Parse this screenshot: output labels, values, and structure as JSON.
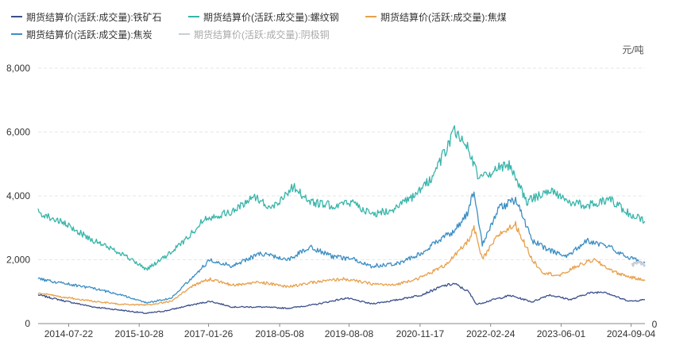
{
  "chart_data": {
    "type": "line",
    "title": "",
    "unit_label": "元/吨",
    "right_axis_label": "0",
    "ylim": [
      0,
      8000
    ],
    "y_ticks": [
      0,
      2000,
      4000,
      6000,
      8000
    ],
    "y_tick_labels": [
      "0",
      "2,000",
      "4,000",
      "6,000",
      "8,000"
    ],
    "x_tick_labels": [
      "2014-07-22",
      "2015-10-28",
      "2017-01-26",
      "2018-05-08",
      "2019-08-08",
      "2020-11-17",
      "2022-02-24",
      "2023-06-01",
      "2024-09-04"
    ],
    "x_tick_years": [
      2014.55,
      2015.82,
      2017.07,
      2018.35,
      2019.6,
      2020.88,
      2022.15,
      2023.42,
      2024.68
    ],
    "x_range": [
      2014.0,
      2024.93
    ],
    "grid": true,
    "series": [
      {
        "name": "期货结算价(活跃:成交量):铁矿石",
        "color": "#3a4f8c",
        "x": [
          2014.0,
          2014.5,
          2015.0,
          2015.5,
          2015.95,
          2016.3,
          2016.7,
          2017.1,
          2017.5,
          2018.0,
          2018.5,
          2019.0,
          2019.55,
          2020.0,
          2020.4,
          2020.9,
          2021.3,
          2021.5,
          2021.75,
          2021.9,
          2022.2,
          2022.5,
          2022.9,
          2023.2,
          2023.6,
          2023.9,
          2024.2,
          2024.5,
          2024.68,
          2024.93
        ],
        "values": [
          900,
          700,
          520,
          420,
          320,
          400,
          560,
          700,
          520,
          520,
          480,
          600,
          800,
          620,
          720,
          900,
          1180,
          1250,
          1000,
          600,
          750,
          880,
          680,
          900,
          750,
          950,
          1000,
          780,
          700,
          750
        ]
      },
      {
        "name": "期货结算价(活跃:成交量):螺纹钢",
        "color": "#37b5aa",
        "x": [
          2014.0,
          2014.5,
          2015.0,
          2015.5,
          2015.95,
          2016.3,
          2016.7,
          2017.0,
          2017.5,
          2017.9,
          2018.2,
          2018.6,
          2018.9,
          2019.3,
          2019.7,
          2020.0,
          2020.4,
          2020.8,
          2021.1,
          2021.3,
          2021.5,
          2021.7,
          2021.95,
          2022.2,
          2022.5,
          2022.8,
          2023.2,
          2023.6,
          2023.9,
          2024.3,
          2024.6,
          2024.93
        ],
        "values": [
          3500,
          3100,
          2600,
          2200,
          1700,
          2100,
          2700,
          3300,
          3500,
          4000,
          3600,
          4300,
          3800,
          3700,
          3800,
          3400,
          3600,
          4000,
          4600,
          5300,
          6000,
          5700,
          4500,
          4800,
          5000,
          3800,
          4200,
          3800,
          3700,
          3900,
          3500,
          3200
        ]
      },
      {
        "name": "期货结算价(活跃:成交量):焦煤",
        "color": "#e8a04c",
        "x": [
          2014.0,
          2014.5,
          2015.0,
          2015.5,
          2015.95,
          2016.4,
          2016.8,
          2017.1,
          2017.5,
          2018.0,
          2018.5,
          2019.0,
          2019.5,
          2020.0,
          2020.4,
          2020.9,
          2021.3,
          2021.55,
          2021.75,
          2021.85,
          2022.0,
          2022.3,
          2022.6,
          2022.9,
          2023.1,
          2023.4,
          2023.7,
          2024.0,
          2024.4,
          2024.68,
          2024.93
        ],
        "values": [
          950,
          820,
          700,
          600,
          580,
          700,
          1200,
          1400,
          1200,
          1300,
          1150,
          1300,
          1400,
          1250,
          1200,
          1450,
          1800,
          2200,
          2600,
          3000,
          2000,
          2800,
          3100,
          2000,
          1600,
          1500,
          1800,
          2000,
          1600,
          1450,
          1350
        ]
      },
      {
        "name": "期货结算价(活跃:成交量):焦炭",
        "color": "#3b8ec4",
        "x": [
          2014.0,
          2014.5,
          2015.0,
          2015.5,
          2015.95,
          2016.4,
          2016.8,
          2017.1,
          2017.5,
          2018.0,
          2018.5,
          2018.9,
          2019.3,
          2019.7,
          2020.0,
          2020.5,
          2020.9,
          2021.2,
          2021.5,
          2021.75,
          2021.85,
          2022.0,
          2022.3,
          2022.6,
          2022.9,
          2023.2,
          2023.5,
          2023.9,
          2024.3,
          2024.6,
          2024.93
        ],
        "values": [
          1400,
          1250,
          1100,
          900,
          650,
          800,
          1500,
          2000,
          1800,
          2200,
          2000,
          2400,
          2100,
          2000,
          1800,
          1900,
          2200,
          2600,
          2900,
          3500,
          4200,
          2500,
          3600,
          3900,
          2600,
          2300,
          2100,
          2600,
          2400,
          2100,
          1900
        ]
      },
      {
        "name": "期货结算价(活跃:成交量):阴极铜",
        "color": "#c9ced6",
        "x": [
          2024.7,
          2024.8,
          2024.93
        ],
        "values": [
          1850,
          1900,
          1850
        ]
      }
    ]
  }
}
